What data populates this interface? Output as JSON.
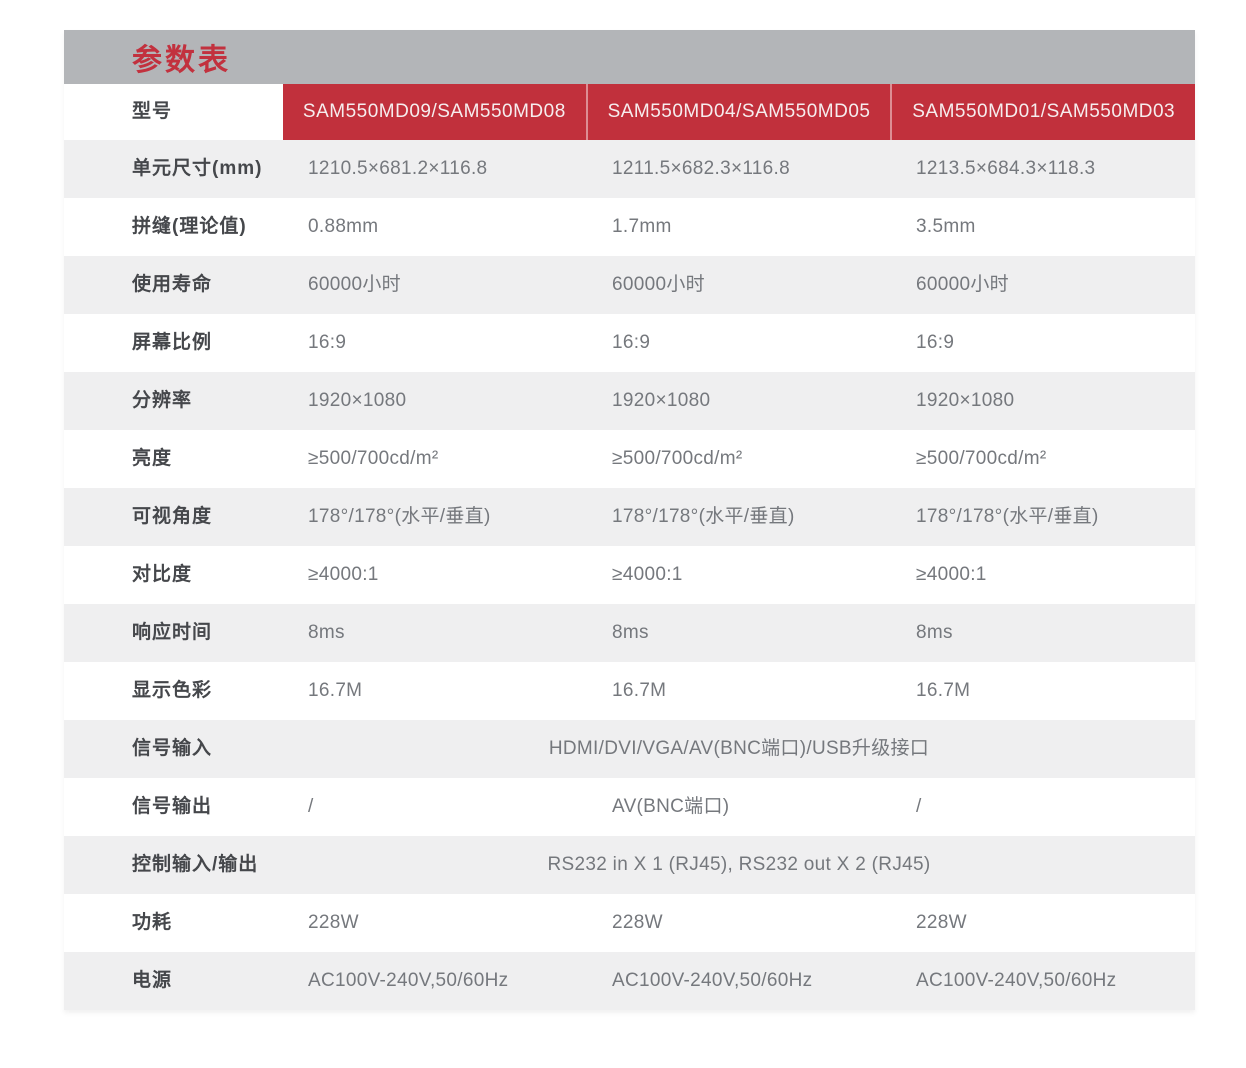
{
  "title": "参数表",
  "colors": {
    "accent_red": "#c1303c",
    "title_bar_gray": "#b3b5b8",
    "stripe_gray": "#efeff0",
    "label_text": "#45474b",
    "value_text": "#75787d",
    "header_text": "#f6edee"
  },
  "table": {
    "header": {
      "label": "型号",
      "models": [
        "SAM550MD09/SAM550MD08",
        "SAM550MD04/SAM550MD05",
        "SAM550MD01/SAM550MD03"
      ]
    },
    "rows": [
      {
        "label": "单元尺寸(mm)",
        "merged": false,
        "values": [
          "1210.5×681.2×116.8",
          "1211.5×682.3×116.8",
          "1213.5×684.3×118.3"
        ]
      },
      {
        "label": "拼缝(理论值)",
        "merged": false,
        "values": [
          "0.88mm",
          "1.7mm",
          "3.5mm"
        ]
      },
      {
        "label": "使用寿命",
        "merged": false,
        "values": [
          "60000小时",
          "60000小时",
          "60000小时"
        ]
      },
      {
        "label": "屏幕比例",
        "merged": false,
        "values": [
          "16:9",
          "16:9",
          "16:9"
        ]
      },
      {
        "label": "分辨率",
        "merged": false,
        "values": [
          "1920×1080",
          "1920×1080",
          "1920×1080"
        ]
      },
      {
        "label": "亮度",
        "merged": false,
        "values": [
          "≥500/700cd/m²",
          "≥500/700cd/m²",
          "≥500/700cd/m²"
        ]
      },
      {
        "label": "可视角度",
        "merged": false,
        "values": [
          "178°/178°(水平/垂直)",
          "178°/178°(水平/垂直)",
          "178°/178°(水平/垂直)"
        ]
      },
      {
        "label": "对比度",
        "merged": false,
        "values": [
          "≥4000:1",
          "≥4000:1",
          "≥4000:1"
        ]
      },
      {
        "label": "响应时间",
        "merged": false,
        "values": [
          "8ms",
          "8ms",
          "8ms"
        ]
      },
      {
        "label": "显示色彩",
        "merged": false,
        "values": [
          "16.7M",
          "16.7M",
          "16.7M"
        ]
      },
      {
        "label": "信号输入",
        "merged": true,
        "values": [
          "HDMI/DVI/VGA/AV(BNC端口)/USB升级接口"
        ]
      },
      {
        "label": "信号输出",
        "merged": false,
        "values": [
          "/",
          "AV(BNC端口)",
          "/"
        ]
      },
      {
        "label": "控制输入/输出",
        "merged": true,
        "values": [
          "RS232 in X 1 (RJ45), RS232 out X 2 (RJ45)"
        ]
      },
      {
        "label": "功耗",
        "merged": false,
        "values": [
          "228W",
          "228W",
          "228W"
        ]
      },
      {
        "label": "电源",
        "merged": false,
        "values": [
          "AC100V-240V,50/60Hz",
          "AC100V-240V,50/60Hz",
          "AC100V-240V,50/60Hz"
        ]
      }
    ]
  }
}
